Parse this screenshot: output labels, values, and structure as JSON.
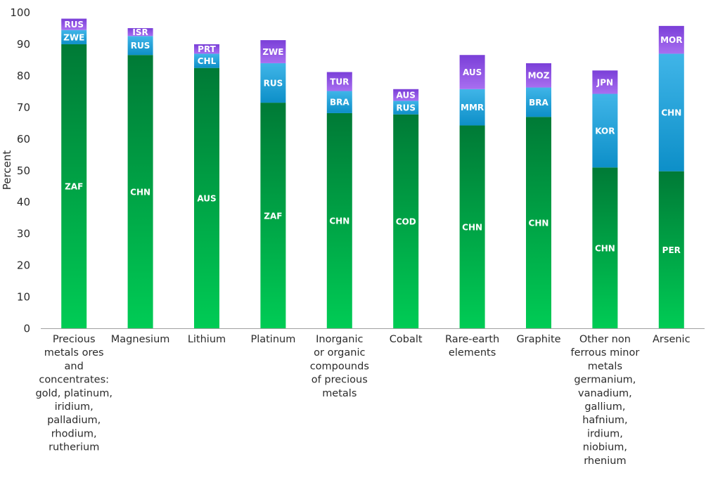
{
  "chart_data": {
    "type": "bar",
    "stacked": true,
    "title": "",
    "xlabel": "",
    "ylabel": "Percent",
    "ylim": [
      0,
      100
    ],
    "yticks": [
      0,
      10,
      20,
      30,
      40,
      50,
      60,
      70,
      80,
      90,
      100
    ],
    "grid": false,
    "categories": [
      [
        "Precious",
        "metals ores",
        "and",
        "concentrates:",
        "gold, platinum,",
        "iridium,",
        "palladium,",
        "rhodium,",
        "rutherium"
      ],
      [
        "Magnesium"
      ],
      [
        "Lithium"
      ],
      [
        "Platinum"
      ],
      [
        "Inorganic",
        "or organic",
        "compounds",
        "of precious",
        "metals"
      ],
      [
        "Cobalt"
      ],
      [
        "Rare-earth",
        "elements"
      ],
      [
        "Graphite"
      ],
      [
        "Other non",
        "ferrous minor",
        "metals",
        "germanium,",
        "vanadium,",
        "gallium,",
        "hafnium,",
        "irdium,",
        "niobium,",
        "rhenium"
      ],
      [
        "Arsenic"
      ]
    ],
    "stacks": [
      [
        {
          "label": "ZAF",
          "value": 90
        },
        {
          "label": "ZWE",
          "value": 4.5
        },
        {
          "label": "RUS",
          "value": 3.6
        }
      ],
      [
        {
          "label": "CHN",
          "value": 86.6
        },
        {
          "label": "RUS",
          "value": 6
        },
        {
          "label": "ISR",
          "value": 2.5
        }
      ],
      [
        {
          "label": "AUS",
          "value": 82.5
        },
        {
          "label": "CHL",
          "value": 4.5
        },
        {
          "label": "PRT",
          "value": 3
        }
      ],
      [
        {
          "label": "ZAF",
          "value": 71.5
        },
        {
          "label": "RUS",
          "value": 12.5
        },
        {
          "label": "ZWE",
          "value": 7.3
        }
      ],
      [
        {
          "label": "CHN",
          "value": 68.2
        },
        {
          "label": "BRA",
          "value": 7
        },
        {
          "label": "TUR",
          "value": 6
        }
      ],
      [
        {
          "label": "COD",
          "value": 67.8
        },
        {
          "label": "RUS",
          "value": 4.3
        },
        {
          "label": "AUS",
          "value": 3.7
        }
      ],
      [
        {
          "label": "CHN",
          "value": 64.3
        },
        {
          "label": "MMR",
          "value": 11.5
        },
        {
          "label": "AUS",
          "value": 10.8
        }
      ],
      [
        {
          "label": "CHN",
          "value": 67
        },
        {
          "label": "BRA",
          "value": 9.3
        },
        {
          "label": "MOZ",
          "value": 7.7
        }
      ],
      [
        {
          "label": "CHN",
          "value": 51
        },
        {
          "label": "KOR",
          "value": 23.3
        },
        {
          "label": "JPN",
          "value": 7.4
        }
      ],
      [
        {
          "label": "PER",
          "value": 49.8
        },
        {
          "label": "CHN",
          "value": 37.2
        },
        {
          "label": "MOR",
          "value": 8.8
        }
      ]
    ],
    "colors": {
      "segment1_top": "#007a36",
      "segment1_bottom": "#00cc55",
      "segment2_top": "#40b5e8",
      "segment2_bottom": "#0d8fc8",
      "segment3_top": "#7a3fd8",
      "segment3_bottom": "#a86ef0"
    }
  }
}
